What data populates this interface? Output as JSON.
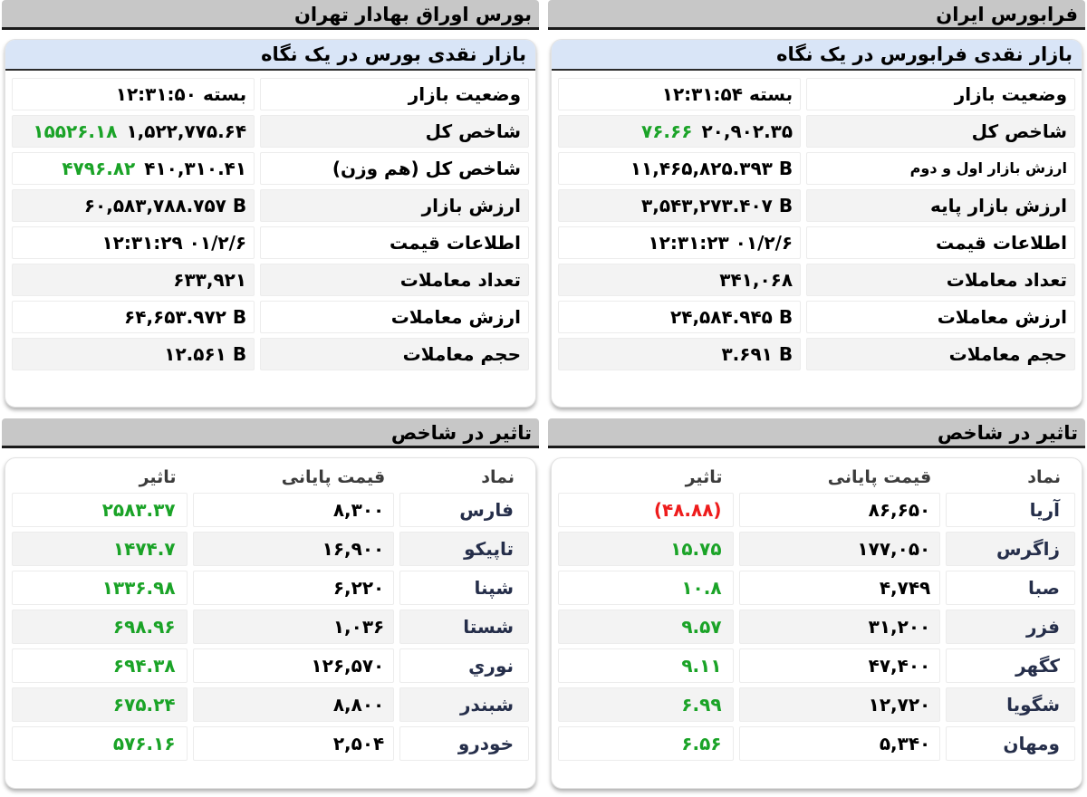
{
  "colors": {
    "header_bar_bg": "#c7c7c7",
    "header_bar_border": "#1a1a1a",
    "panel_title_bg": "#d9e5f7",
    "panel_title_border": "#2b2b2b",
    "row_stripe_bg": "#f3f3f3",
    "cell_border": "#ececec",
    "positive_green": "#1aa327",
    "negative_red": "#ee1c1c",
    "symbol_text": "#252e4a",
    "table_header_text": "#3c3c3c"
  },
  "fara": {
    "header": "فرابورس ایران",
    "summary": {
      "title": "بازار نقدی فرابورس در یک نگاه",
      "rows": [
        {
          "label": "وضعیت بازار",
          "status": "بسته",
          "time": "۱۲:۳۱:۵۴"
        },
        {
          "label": "شاخص کل",
          "value": "۲۰,۹۰۲.۳۵",
          "change": "۷۶.۶۶"
        },
        {
          "label": "ارزش بازار اول و دوم",
          "value": "۱۱,۴۶۵,۸۲۵.۳۹۳ B",
          "small": true
        },
        {
          "label": "ارزش بازار پایه",
          "value": "۳,۵۴۳,۲۷۳.۴۰۷ B"
        },
        {
          "label": "اطلاعات قیمت",
          "value": "۱۲:۳۱:۲۳ ۰۱/۲/۶"
        },
        {
          "label": "تعداد معاملات",
          "value": "۳۴۱,۰۶۸"
        },
        {
          "label": "ارزش معاملات",
          "value": "۲۴,۵۸۴.۹۴۵ B"
        },
        {
          "label": "حجم معاملات",
          "value": "۳.۶۹۱ B"
        }
      ]
    },
    "impact": {
      "title": "تاثیر در شاخص",
      "columns": {
        "symbol": "نماد",
        "price": "قیمت پایانی",
        "impact": "تاثیر"
      },
      "rows": [
        {
          "symbol": "آریا",
          "price": "۸۶,۶۵۰",
          "impact": "(۴۸.۸۸)",
          "negative": true
        },
        {
          "symbol": "زاگرس",
          "price": "۱۷۷,۰۵۰",
          "impact": "۱۵.۷۵",
          "negative": false
        },
        {
          "symbol": "صبا",
          "price": "۴,۷۴۹",
          "impact": "۱۰.۸",
          "negative": false
        },
        {
          "symbol": "فزر",
          "price": "۳۱,۲۰۰",
          "impact": "۹.۵۷",
          "negative": false
        },
        {
          "symbol": "کگهر",
          "price": "۴۷,۴۰۰",
          "impact": "۹.۱۱",
          "negative": false
        },
        {
          "symbol": "شگویا",
          "price": "۱۲,۷۲۰",
          "impact": "۶.۹۹",
          "negative": false
        },
        {
          "symbol": "ومهان",
          "price": "۵,۳۴۰",
          "impact": "۶.۵۶",
          "negative": false
        }
      ]
    }
  },
  "bourse": {
    "header": "بورس اوراق بهادار تهران",
    "summary": {
      "title": "بازار نقدی بورس در یک نگاه",
      "rows": [
        {
          "label": "وضعیت بازار",
          "status": "بسته",
          "time": "۱۲:۳۱:۵۰"
        },
        {
          "label": "شاخص کل",
          "value": "۱,۵۲۲,۷۷۵.۶۴",
          "change": "۱۵۵۲۶.۱۸"
        },
        {
          "label": "شاخص کل (هم وزن)",
          "value": "۴۱۰,۳۱۰.۴۱",
          "change": "۴۷۹۶.۸۲"
        },
        {
          "label": "ارزش بازار",
          "value": "۶۰,۵۸۳,۷۸۸.۷۵۷ B"
        },
        {
          "label": "اطلاعات قیمت",
          "value": "۱۲:۳۱:۲۹ ۰۱/۲/۶"
        },
        {
          "label": "تعداد معاملات",
          "value": "۶۳۳,۹۲۱"
        },
        {
          "label": "ارزش معاملات",
          "value": "۶۴,۶۵۳.۹۷۲ B"
        },
        {
          "label": "حجم معاملات",
          "value": "۱۲.۵۶۱ B"
        }
      ]
    },
    "impact": {
      "title": "تاثیر در شاخص",
      "columns": {
        "symbol": "نماد",
        "price": "قیمت پایانی",
        "impact": "تاثیر"
      },
      "rows": [
        {
          "symbol": "فارس",
          "price": "۸,۳۰۰",
          "impact": "۲۵۸۳.۳۷",
          "negative": false
        },
        {
          "symbol": "تاپیکو",
          "price": "۱۶,۹۰۰",
          "impact": "۱۴۷۴.۷",
          "negative": false
        },
        {
          "symbol": "شپنا",
          "price": "۶,۲۲۰",
          "impact": "۱۳۳۶.۹۸",
          "negative": false
        },
        {
          "symbol": "شستا",
          "price": "۱,۰۳۶",
          "impact": "۶۹۸.۹۶",
          "negative": false
        },
        {
          "symbol": "نوري",
          "price": "۱۲۶,۵۷۰",
          "impact": "۶۹۴.۳۸",
          "negative": false
        },
        {
          "symbol": "شبندر",
          "price": "۸,۸۰۰",
          "impact": "۶۷۵.۲۴",
          "negative": false
        },
        {
          "symbol": "خودرو",
          "price": "۲,۵۰۴",
          "impact": "۵۷۶.۱۶",
          "negative": false
        }
      ]
    }
  }
}
